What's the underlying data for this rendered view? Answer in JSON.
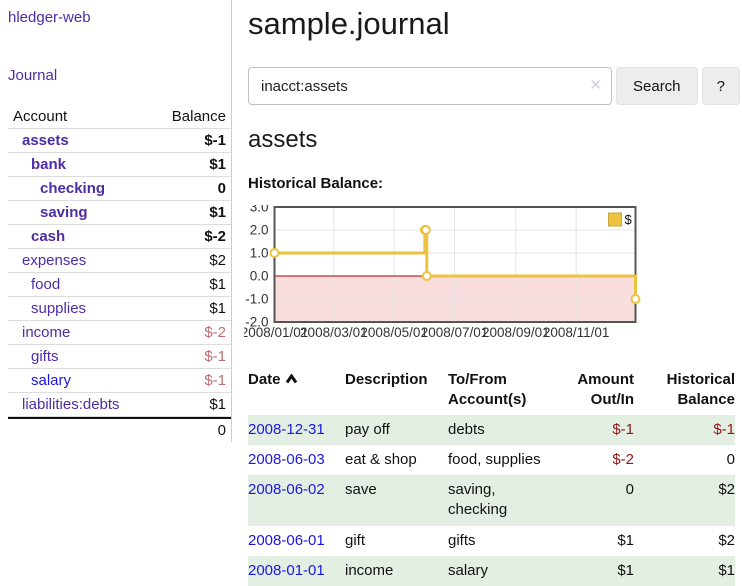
{
  "app": {
    "brand": "hledger-web",
    "nav": {
      "journal": "Journal"
    }
  },
  "sidebar": {
    "headers": {
      "account": "Account",
      "balance": "Balance"
    },
    "accounts": [
      {
        "name": "assets",
        "balance": "$-1",
        "depth": 1
      },
      {
        "name": "bank",
        "balance": "$1",
        "depth": 2
      },
      {
        "name": "checking",
        "balance": "0",
        "depth": 3
      },
      {
        "name": "saving",
        "balance": "$1",
        "depth": 3
      },
      {
        "name": "cash",
        "balance": "$-2",
        "depth": 2
      },
      {
        "name": "expenses",
        "balance": "$2",
        "depth": 1
      },
      {
        "name": "food",
        "balance": "$1",
        "depth": 2
      },
      {
        "name": "supplies",
        "balance": "$1",
        "depth": 2
      },
      {
        "name": "income",
        "balance": "$-2",
        "depth": 1
      },
      {
        "name": "gifts",
        "balance": "$-1",
        "depth": 2
      },
      {
        "name": "salary",
        "balance": "$-1",
        "depth": 2
      },
      {
        "name": "liabilities:debts",
        "balance": "$1",
        "depth": 1
      }
    ],
    "total": "0"
  },
  "main": {
    "title": "sample.journal",
    "search": {
      "value": "inacct:assets",
      "clear_icon": "✕",
      "search_button": "Search",
      "help_button": "?"
    },
    "account_heading": "assets",
    "chart_label": "Historical Balance:"
  },
  "chart_data": {
    "type": "line",
    "step": true,
    "title": "Historical Balance:",
    "series": [
      {
        "name": "$",
        "color": "#edc240",
        "x": [
          "2008-01-01",
          "2008-06-01",
          "2008-06-02",
          "2008-06-03",
          "2008-12-31"
        ],
        "y": [
          1,
          2,
          2,
          0,
          -1
        ]
      }
    ],
    "xrange": [
      "2008-01-01",
      "2008-12-31"
    ],
    "ylim": [
      -2,
      3
    ],
    "yticks": [
      "3.0",
      "2.0",
      "1.0",
      "0.0",
      "-1.0",
      "-2.0"
    ],
    "xticks": [
      "2008/01/01",
      "2008/03/01",
      "2008/05/01",
      "2008/07/01",
      "2008/09/01",
      "2008/11/01"
    ],
    "grid": true,
    "grid_color": "#e6e6e6",
    "border_color": "#555555",
    "below_zero_fill": "#fadddd",
    "zero_line_color": "#a40000",
    "legend": {
      "label": "$",
      "position": "top-right"
    }
  },
  "register": {
    "headers": {
      "date": "Date",
      "description": "Description",
      "tofrom_line1": "To/From",
      "tofrom_line2": "Account(s)",
      "amount_line1": "Amount",
      "amount_line2": "Out/In",
      "balance_line1": "Historical",
      "balance_line2": "Balance"
    },
    "rows": [
      {
        "date": "2008-12-31",
        "description": "pay off",
        "to_from": "debts",
        "amount": "$-1",
        "balance": "$-1"
      },
      {
        "date": "2008-06-03",
        "description": "eat & shop",
        "to_from": "food, supplies",
        "amount": "$-2",
        "balance": "0"
      },
      {
        "date": "2008-06-02",
        "description": "save",
        "to_from": "saving, checking",
        "amount": "0",
        "balance": "$2"
      },
      {
        "date": "2008-06-01",
        "description": "gift",
        "to_from": "gifts",
        "amount": "$1",
        "balance": "$2"
      },
      {
        "date": "2008-01-01",
        "description": "income",
        "to_from": "salary",
        "amount": "$1",
        "balance": "$1"
      }
    ]
  },
  "colors": {
    "link_purple": "#4f2ba5",
    "link_blue": "#1b16e0",
    "negative_strong": "#941414",
    "negative_muted": "#bd6f6f",
    "row_green": "#e3efe3"
  }
}
